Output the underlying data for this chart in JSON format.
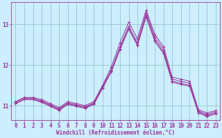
{
  "xlabel": "Windchill (Refroidissement éolien,°C)",
  "background_color": "#cceeff",
  "grid_color": "#99cccc",
  "line_color": "#993399",
  "xlim": [
    -0.5,
    23.5
  ],
  "ylim": [
    10.65,
    13.55
  ],
  "yticks": [
    11,
    12,
    13
  ],
  "xticks": [
    0,
    1,
    2,
    3,
    4,
    5,
    6,
    7,
    8,
    9,
    10,
    11,
    12,
    13,
    14,
    15,
    16,
    17,
    18,
    19,
    20,
    21,
    22,
    23
  ],
  "series": [
    [
      11.1,
      11.2,
      11.2,
      11.15,
      11.05,
      10.95,
      11.1,
      11.05,
      11.0,
      11.1,
      11.5,
      11.95,
      12.55,
      13.05,
      12.65,
      13.35,
      12.75,
      12.45,
      11.7,
      11.65,
      11.6,
      10.9,
      10.82,
      10.88
    ],
    [
      11.08,
      11.18,
      11.18,
      11.12,
      11.02,
      10.92,
      11.07,
      11.02,
      10.97,
      11.07,
      11.47,
      11.87,
      12.45,
      12.95,
      12.55,
      13.28,
      12.68,
      12.38,
      11.65,
      11.6,
      11.55,
      10.87,
      10.78,
      10.85
    ],
    [
      11.05,
      11.15,
      11.15,
      11.1,
      11.0,
      10.9,
      11.05,
      11.0,
      10.95,
      11.05,
      11.45,
      11.85,
      12.4,
      12.9,
      12.5,
      13.22,
      12.62,
      12.32,
      11.6,
      11.55,
      11.5,
      10.85,
      10.75,
      10.82
    ],
    [
      11.05,
      11.15,
      11.15,
      11.08,
      10.98,
      10.88,
      11.03,
      10.98,
      10.93,
      11.03,
      11.43,
      11.83,
      12.38,
      12.88,
      12.48,
      13.18,
      12.58,
      12.28,
      11.58,
      11.52,
      11.48,
      10.82,
      10.73,
      10.8
    ]
  ]
}
